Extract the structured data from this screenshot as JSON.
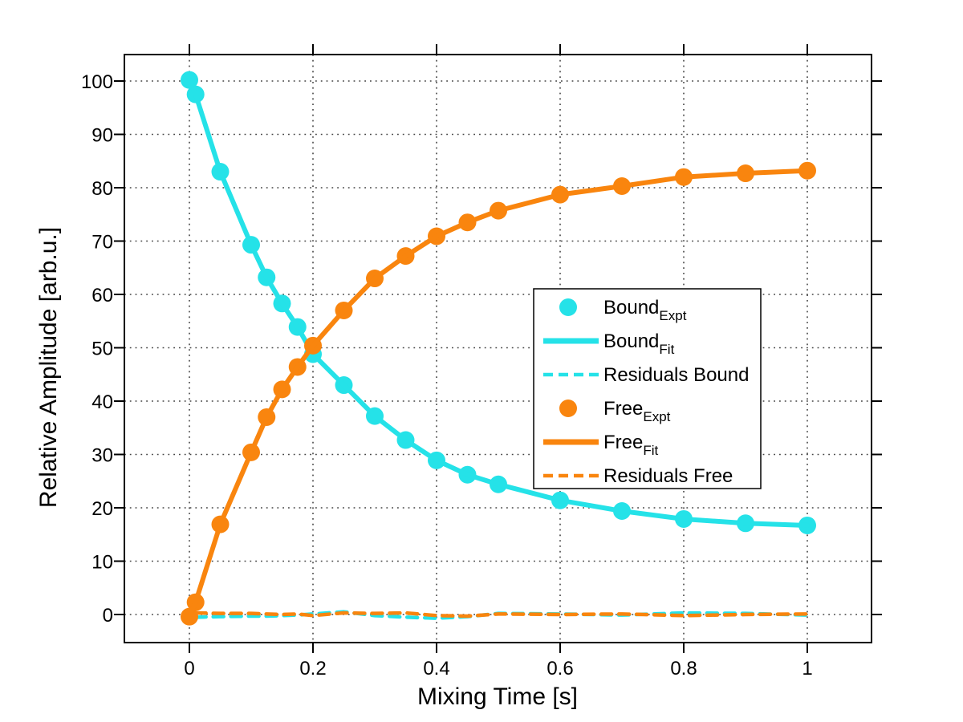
{
  "figure": {
    "background": "#FFFFFF"
  },
  "colors": {
    "bound": "#25E2E8",
    "free": "#F9850E",
    "axis": "#000000",
    "grid": "#444444",
    "legend_border": "#000000"
  },
  "chart_data": {
    "type": "line",
    "title": "",
    "xlabel": "Mixing Time [s]",
    "ylabel": "Relative Amplitude [arb.u.]",
    "xlim": [
      -0.105,
      1.105
    ],
    "ylim": [
      -5.3,
      105
    ],
    "grid": "dotted",
    "legend_position": "middle-right",
    "xticks": {
      "values": [
        0,
        0.2,
        0.4,
        0.6,
        0.8,
        1
      ],
      "labels": [
        "0",
        "0.2",
        "0.4",
        "0.6",
        "0.8",
        "1"
      ]
    },
    "yticks": {
      "values": [
        0,
        10,
        20,
        30,
        40,
        50,
        60,
        70,
        80,
        90,
        100
      ],
      "labels": [
        "0",
        "10",
        "20",
        "30",
        "40",
        "50",
        "60",
        "70",
        "80",
        "90",
        "100"
      ]
    },
    "x": [
      0,
      0.01,
      0.05,
      0.1,
      0.125,
      0.15,
      0.175,
      0.2,
      0.25,
      0.3,
      0.35,
      0.4,
      0.45,
      0.5,
      0.6,
      0.7,
      0.8,
      0.9,
      1.0
    ],
    "series": [
      {
        "name": "Bound_Expt",
        "style": "markers",
        "color": "#25E2E8",
        "values": [
          100.2,
          97.5,
          83.0,
          69.3,
          63.2,
          58.3,
          53.9,
          48.8,
          43.0,
          37.2,
          32.7,
          28.9,
          26.2,
          24.4,
          21.4,
          19.4,
          17.9,
          17.1,
          16.7
        ]
      },
      {
        "name": "Bound_Fit",
        "style": "solid",
        "color": "#25E2E8",
        "values": [
          100.2,
          97.5,
          83.0,
          69.3,
          63.2,
          58.3,
          53.9,
          48.8,
          43.0,
          37.2,
          32.7,
          28.9,
          26.2,
          24.4,
          21.4,
          19.4,
          17.9,
          17.1,
          16.7
        ]
      },
      {
        "name": "Residuals Bound",
        "style": "dashed",
        "color": "#25E2E8",
        "x": [
          0.01,
          0.05,
          0.1,
          0.125,
          0.15,
          0.175,
          0.2,
          0.25,
          0.3,
          0.35,
          0.4,
          0.45,
          0.5,
          0.6,
          0.7,
          0.8,
          0.9,
          1.0
        ],
        "values": [
          -0.5,
          -0.4,
          -0.3,
          -0.3,
          -0.2,
          -0.1,
          0.1,
          0.5,
          -0.2,
          -0.5,
          -0.7,
          -0.4,
          0.2,
          0.1,
          -0.1,
          0.3,
          0.2,
          -0.1
        ]
      },
      {
        "name": "Free_Expt",
        "style": "markers",
        "color": "#F9850E",
        "values": [
          -0.4,
          2.3,
          16.9,
          30.4,
          37.0,
          42.2,
          46.4,
          50.4,
          57.0,
          63.0,
          67.2,
          70.9,
          73.5,
          75.7,
          78.7,
          80.3,
          82.0,
          82.7,
          83.2
        ]
      },
      {
        "name": "Free_Fit",
        "style": "solid",
        "color": "#F9850E",
        "values": [
          -0.4,
          2.3,
          16.9,
          30.4,
          37.0,
          42.2,
          46.4,
          50.4,
          57.0,
          63.0,
          67.2,
          70.9,
          73.5,
          75.7,
          78.7,
          80.3,
          82.0,
          82.7,
          83.2
        ]
      },
      {
        "name": "Residuals Free",
        "style": "dashed",
        "color": "#F9850E",
        "x": [
          0.01,
          0.05,
          0.1,
          0.125,
          0.15,
          0.175,
          0.2,
          0.25,
          0.3,
          0.35,
          0.4,
          0.45,
          0.5,
          0.6,
          0.7,
          0.8,
          0.9,
          1.0
        ],
        "values": [
          0.3,
          0.2,
          0.2,
          0.1,
          0.0,
          0.1,
          -0.2,
          0.3,
          0.2,
          0.3,
          -0.2,
          -0.3,
          0.1,
          0.0,
          0.1,
          -0.2,
          0.0,
          0.1
        ]
      }
    ],
    "legend": [
      {
        "label": "Bound",
        "subscript": "Expt",
        "swatch": "marker",
        "color": "#25E2E8"
      },
      {
        "label": "Bound",
        "subscript": "Fit",
        "swatch": "line",
        "color": "#25E2E8"
      },
      {
        "label": "Residuals Bound",
        "subscript": "",
        "swatch": "dash",
        "color": "#25E2E8"
      },
      {
        "label": "Free",
        "subscript": "Expt",
        "swatch": "marker",
        "color": "#F9850E"
      },
      {
        "label": "Free",
        "subscript": "Fit",
        "swatch": "line",
        "color": "#F9850E"
      },
      {
        "label": "Residuals Free",
        "subscript": "",
        "swatch": "dash",
        "color": "#F9850E"
      }
    ]
  }
}
